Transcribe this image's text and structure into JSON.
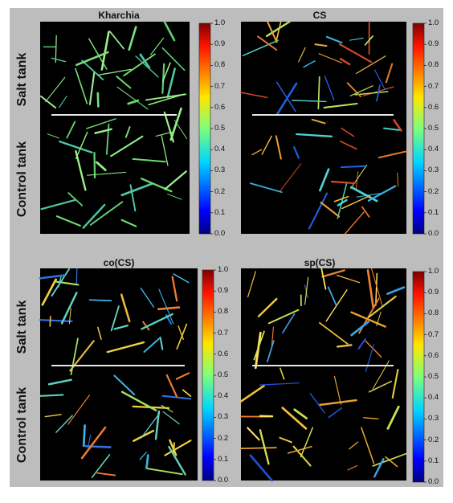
{
  "panels": [
    {
      "title": "Kharchia"
    },
    {
      "title": "CS"
    },
    {
      "title": "co(CS)"
    },
    {
      "title": "sp(CS)"
    }
  ],
  "row_labels": {
    "salt": "Salt tank",
    "control": "Control tank"
  },
  "colorbar": {
    "ticks": [
      "1.0",
      "0.9",
      "0.8",
      "0.7",
      "0.6",
      "0.5",
      "0.4",
      "0.3",
      "0.2",
      "0.1",
      "0.0"
    ],
    "colormap": "jet",
    "range": [
      0.0,
      1.0
    ]
  },
  "colors": {
    "figure_bg": "#bdbdbd",
    "image_bg": "#000000",
    "divider": "#e6e6e6"
  }
}
